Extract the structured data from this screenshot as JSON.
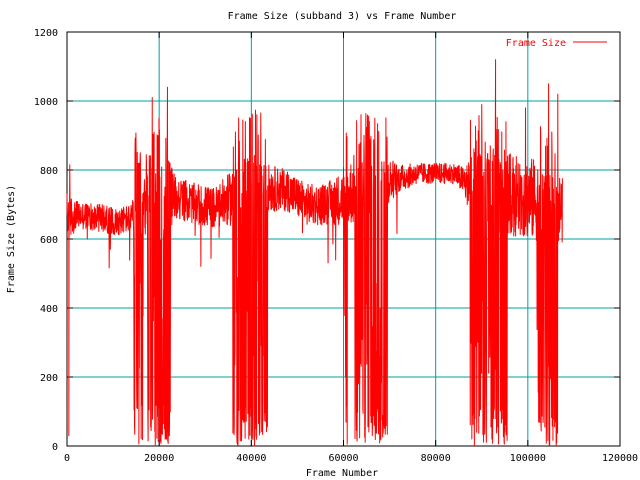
{
  "chart_data": {
    "type": "line",
    "title": "Frame Size (subband 3) vs Frame Number",
    "xlabel": "Frame Number",
    "ylabel": "Frame Size (Bytes)",
    "xlim": [
      0,
      120000
    ],
    "ylim": [
      0,
      1200
    ],
    "x_ticks": [
      0,
      20000,
      40000,
      60000,
      80000,
      100000,
      120000
    ],
    "y_ticks": [
      0,
      200,
      400,
      600,
      800,
      1000,
      1200
    ],
    "grid": true,
    "grid_color": "#00a0a0",
    "legend": {
      "position": "top-right",
      "entries": [
        "Frame Size"
      ]
    },
    "series": [
      {
        "name": "Frame Size",
        "color": "#ff0000",
        "profile": [
          [
            0,
            660,
            80
          ],
          [
            2000,
            670,
            40
          ],
          [
            8000,
            660,
            40
          ],
          [
            10000,
            650,
            40
          ],
          [
            14000,
            660,
            40
          ],
          [
            16000,
            720,
            120
          ],
          [
            20000,
            730,
            150
          ],
          [
            24000,
            720,
            60
          ],
          [
            28000,
            700,
            60
          ],
          [
            32000,
            690,
            60
          ],
          [
            36000,
            720,
            80
          ],
          [
            40000,
            760,
            120
          ],
          [
            43000,
            750,
            70
          ],
          [
            48000,
            740,
            60
          ],
          [
            52000,
            700,
            60
          ],
          [
            56000,
            700,
            60
          ],
          [
            60000,
            720,
            80
          ],
          [
            64000,
            760,
            120
          ],
          [
            68000,
            770,
            90
          ],
          [
            72000,
            775,
            40
          ],
          [
            76000,
            790,
            30
          ],
          [
            80000,
            790,
            30
          ],
          [
            84000,
            790,
            30
          ],
          [
            86000,
            770,
            40
          ],
          [
            88000,
            740,
            100
          ],
          [
            92000,
            740,
            140
          ],
          [
            96000,
            730,
            120
          ],
          [
            100000,
            720,
            120
          ],
          [
            104000,
            700,
            120
          ],
          [
            107000,
            690,
            100
          ]
        ],
        "drop_ranges": [
          [
            14500,
            16500
          ],
          [
            17500,
            22500
          ],
          [
            36000,
            43500
          ],
          [
            60000,
            60800
          ],
          [
            62500,
            69500
          ],
          [
            87500,
            95500
          ],
          [
            102000,
            106500
          ]
        ],
        "peaks": [
          [
            600,
            815
          ],
          [
            15900,
            850
          ],
          [
            18500,
            1010
          ],
          [
            21800,
            1040
          ],
          [
            39800,
            950
          ],
          [
            41200,
            960
          ],
          [
            63800,
            960
          ],
          [
            66800,
            950
          ],
          [
            90000,
            990
          ],
          [
            93000,
            1120
          ],
          [
            99500,
            980
          ],
          [
            104500,
            1050
          ],
          [
            106500,
            1020
          ]
        ],
        "end_frame": 107500
      }
    ]
  }
}
